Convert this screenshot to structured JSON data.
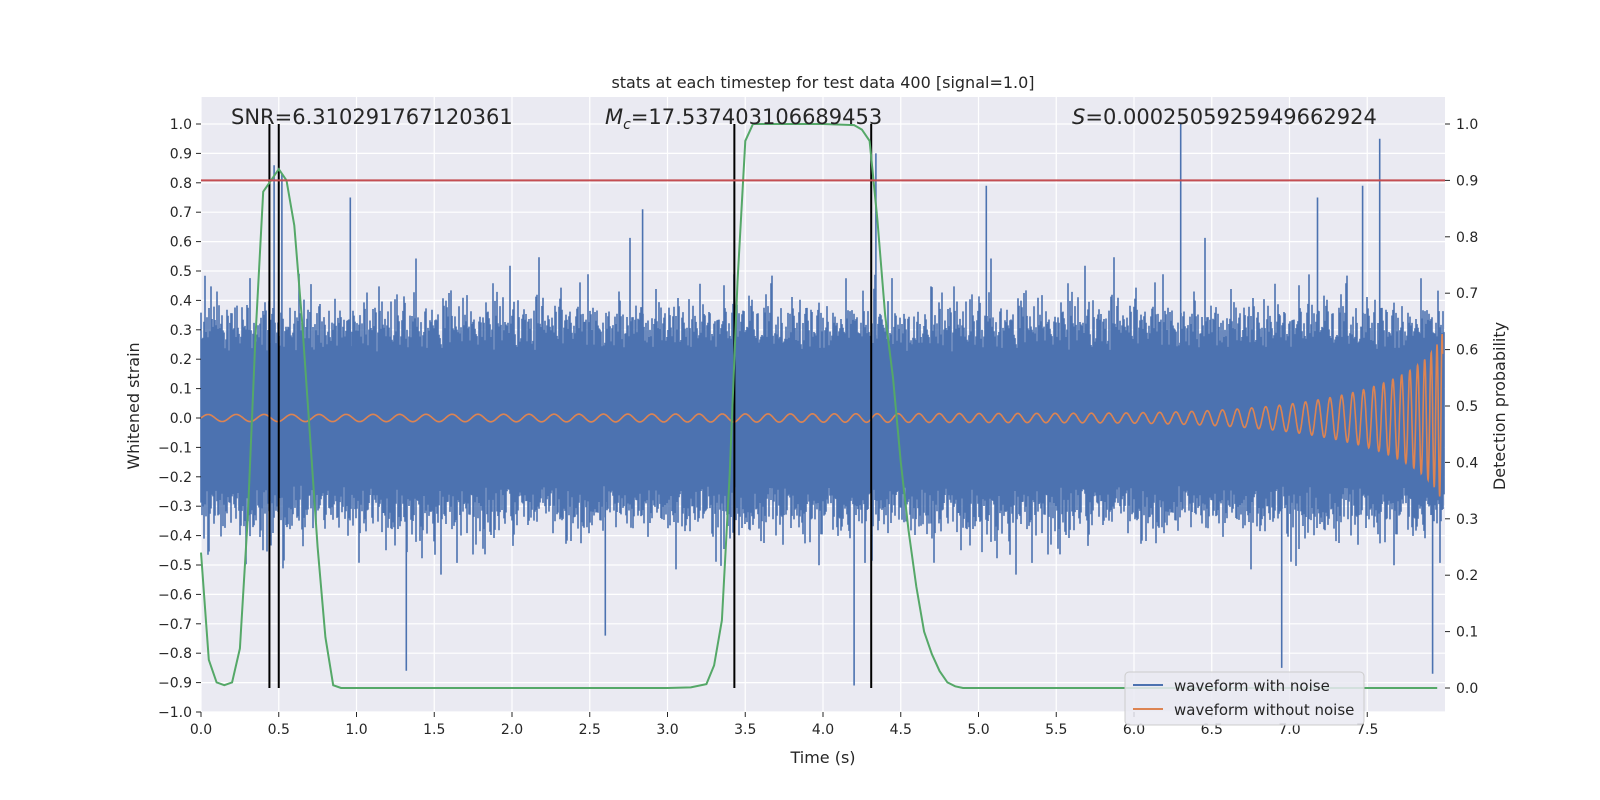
{
  "chart_data": {
    "type": "line",
    "title": "stats at each timestep for test data 400 [signal=1.0]",
    "xlabel": "Time (s)",
    "ylabel": "Whitened strain",
    "y2label": "Detection probability",
    "xlim": [
      0.0,
      8.0
    ],
    "ylim": [
      -1.0,
      1.0
    ],
    "y2lim": [
      -0.05,
      1.0
    ],
    "xticks": [
      "0.0",
      "0.5",
      "1.0",
      "1.5",
      "2.0",
      "2.5",
      "3.0",
      "3.5",
      "4.0",
      "4.5",
      "5.0",
      "5.5",
      "6.0",
      "6.5",
      "7.0",
      "7.5"
    ],
    "yticks": [
      "1.0",
      "0.9",
      "0.8",
      "0.7",
      "0.6",
      "0.5",
      "0.4",
      "0.3",
      "0.2",
      "0.1",
      "0.0",
      "−0.1",
      "−0.2",
      "−0.3",
      "−0.4",
      "−0.5",
      "−0.6",
      "−0.7",
      "−0.8",
      "−0.9",
      "−1.0"
    ],
    "y2ticks": [
      "1.0",
      "0.9",
      "0.8",
      "0.7",
      "0.6",
      "0.5",
      "0.4",
      "0.3",
      "0.2",
      "0.1",
      "0.0"
    ],
    "grid": true,
    "legend_placement": "lower-right",
    "annotations": {
      "snr": "SNR=6.310291767120361",
      "mc_symbol": "M",
      "mc_sub": "c",
      "mc_value": "=17.537403106689453",
      "s_symbol": "S",
      "s_value": "=0.0002505925949662924"
    },
    "threshold_probability": 0.9,
    "detection_boundaries_s": [
      0.44,
      0.5,
      3.43,
      4.31
    ],
    "series": [
      {
        "name": "waveform with noise",
        "color": "#4c72b0",
        "kind": "noise",
        "noise_envelope": 0.3,
        "notable_peaks": [
          {
            "x": 0.47,
            "y": 0.86
          },
          {
            "x": 0.52,
            "y": 0.83
          },
          {
            "x": 0.96,
            "y": 0.75
          },
          {
            "x": 1.32,
            "y": -0.86
          },
          {
            "x": 2.6,
            "y": -0.74
          },
          {
            "x": 2.84,
            "y": 0.71
          },
          {
            "x": 4.2,
            "y": -0.91
          },
          {
            "x": 4.34,
            "y": 0.9
          },
          {
            "x": 5.05,
            "y": 0.79
          },
          {
            "x": 6.3,
            "y": 1.0
          },
          {
            "x": 6.95,
            "y": -0.85
          },
          {
            "x": 7.18,
            "y": 0.75
          },
          {
            "x": 7.47,
            "y": 0.79
          },
          {
            "x": 7.58,
            "y": 0.95
          },
          {
            "x": 7.92,
            "y": -0.87
          }
        ]
      },
      {
        "name": "waveform without noise",
        "color": "#dd8452",
        "kind": "chirp",
        "chirp": {
          "t_merge": 8.0,
          "start_amp": 0.012,
          "start_freq": 5.5,
          "end_amp": 0.5
        }
      },
      {
        "name": "",
        "color": "#55a868",
        "kind": "probability",
        "x": [
          0.0,
          0.05,
          0.1,
          0.15,
          0.2,
          0.25,
          0.3,
          0.35,
          0.4,
          0.45,
          0.5,
          0.55,
          0.6,
          0.65,
          0.7,
          0.75,
          0.8,
          0.85,
          0.9,
          0.95,
          1.0,
          1.5,
          2.0,
          2.5,
          3.0,
          3.15,
          3.25,
          3.3,
          3.35,
          3.4,
          3.45,
          3.5,
          3.55,
          3.6,
          3.7,
          3.8,
          4.0,
          4.2,
          4.25,
          4.3,
          4.35,
          4.4,
          4.45,
          4.5,
          4.55,
          4.6,
          4.65,
          4.7,
          4.75,
          4.8,
          4.85,
          4.9,
          5.0,
          6.0,
          7.0,
          7.95
        ],
        "y": [
          0.24,
          0.05,
          0.01,
          0.005,
          0.01,
          0.07,
          0.3,
          0.62,
          0.88,
          0.9,
          0.92,
          0.9,
          0.82,
          0.65,
          0.45,
          0.25,
          0.09,
          0.005,
          0.0,
          0.0,
          0.0,
          0.0,
          0.0,
          0.0,
          0.0,
          0.001,
          0.007,
          0.04,
          0.12,
          0.38,
          0.72,
          0.97,
          1.0,
          1.0,
          1.0,
          1.0,
          1.0,
          0.998,
          0.99,
          0.97,
          0.83,
          0.66,
          0.55,
          0.4,
          0.28,
          0.18,
          0.1,
          0.06,
          0.03,
          0.01,
          0.003,
          0.0,
          0.0,
          0.0,
          0.0,
          0.0
        ]
      }
    ]
  }
}
